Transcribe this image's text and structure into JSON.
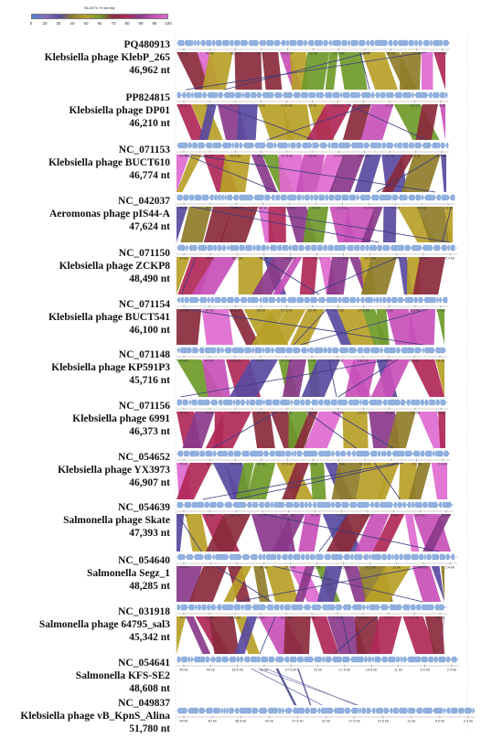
{
  "legend": {
    "title": "BLASTn % identity",
    "colors": [
      "#4a7fd6",
      "#8a6fb8",
      "#5a4aa0",
      "#8f7d2a",
      "#b8a028",
      "#6f9a2a",
      "#8a2a3c",
      "#b02858",
      "#8a3a8a",
      "#c850b8",
      "#e06ad0"
    ],
    "ticks": [
      "0",
      "20",
      "30",
      "40",
      "50",
      "60",
      "70",
      "80",
      "90",
      "95",
      "100"
    ]
  },
  "genomes": [
    {
      "accession": "PQ480913",
      "name": "Klebsiella phage KlebP_265",
      "length": "46,962 nt"
    },
    {
      "accession": "PP824815",
      "name": "Klebsiella phage DP01",
      "length": "46,210 nt"
    },
    {
      "accession": "NC_071153",
      "name": "Klebsiella phage BUCT610",
      "length": "46,774 nt"
    },
    {
      "accession": "NC_042037",
      "name": "Aeromonas phage pIS44-A",
      "length": "47,624 nt"
    },
    {
      "accession": "NC_071150",
      "name": "Klebsiella phage ZCKP8",
      "length": "48,490 nt"
    },
    {
      "accession": "NC_071154",
      "name": "Klebsiella phage BUCT541",
      "length": "46,100 nt"
    },
    {
      "accession": "NC_071148",
      "name": "Klebsiella phage KP591P3",
      "length": "45,716 nt"
    },
    {
      "accession": "NC_071156",
      "name": "Klebsiella phage 6991",
      "length": "46,373 nt"
    },
    {
      "accession": "NC_054652",
      "name": "Klebsiella phage YX3973",
      "length": "46,907 nt"
    },
    {
      "accession": "NC_054639",
      "name": "Salmonella phage Skate",
      "length": "47,393 nt"
    },
    {
      "accession": "NC_054640",
      "name": "Salmonella Segz_1",
      "length": "48,285 nt"
    },
    {
      "accession": "NC_031918",
      "name": "Salmonella phage 64795_sal3",
      "length": "45,342 nt"
    },
    {
      "accession": "NC_054641",
      "name": "Salmonella KFS-SE2",
      "length": "48,608 nt"
    },
    {
      "accession": "NC_049837",
      "name": "Klebsiella phage vB_KpnS_Alina",
      "length": "51,780 nt"
    }
  ],
  "scale_ticks": [
    "45 kb",
    "40 kb",
    "35.5 kb",
    "30 kb",
    "27.5 kb",
    "22 kb",
    "17.5 kb",
    "14.5 kb",
    "11 kb",
    "6.5 kb",
    "2.4 kb"
  ],
  "band_colors": [
    "#c850b8",
    "#e06ad0",
    "#8a2a3c",
    "#b02858",
    "#8a3a8a",
    "#b8a028",
    "#8f7d2a",
    "#6f9a2a",
    "#5a4aa0"
  ]
}
